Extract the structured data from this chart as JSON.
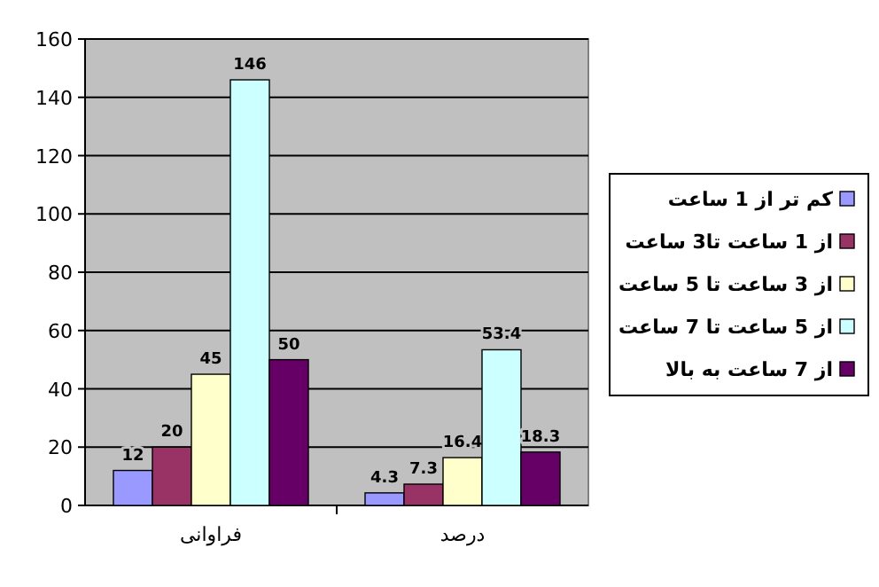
{
  "chart_data": {
    "type": "bar",
    "categories": [
      "فراوانی",
      "درصد"
    ],
    "series": [
      {
        "name": "کم تر از 1 ساعت",
        "color": "#9999ff",
        "values": [
          12,
          4.3
        ]
      },
      {
        "name": "از 1 ساعت تا3 ساعت",
        "color": "#993366",
        "values": [
          20,
          7.3
        ]
      },
      {
        "name": "از 3 ساعت تا 5 ساعت",
        "color": "#ffffcc",
        "values": [
          45,
          16.4
        ]
      },
      {
        "name": "از 5 ساعت تا 7 ساعت",
        "color": "#ccffff",
        "values": [
          146,
          53.4
        ]
      },
      {
        "name": "از 7 ساعت به بالا",
        "color": "#660066",
        "values": [
          50,
          18.3
        ]
      }
    ],
    "ylim": [
      0,
      160
    ],
    "yticks": [
      0,
      20,
      40,
      60,
      80,
      100,
      120,
      140,
      160
    ],
    "grid": "y",
    "legend": "right",
    "data_labels": true
  }
}
